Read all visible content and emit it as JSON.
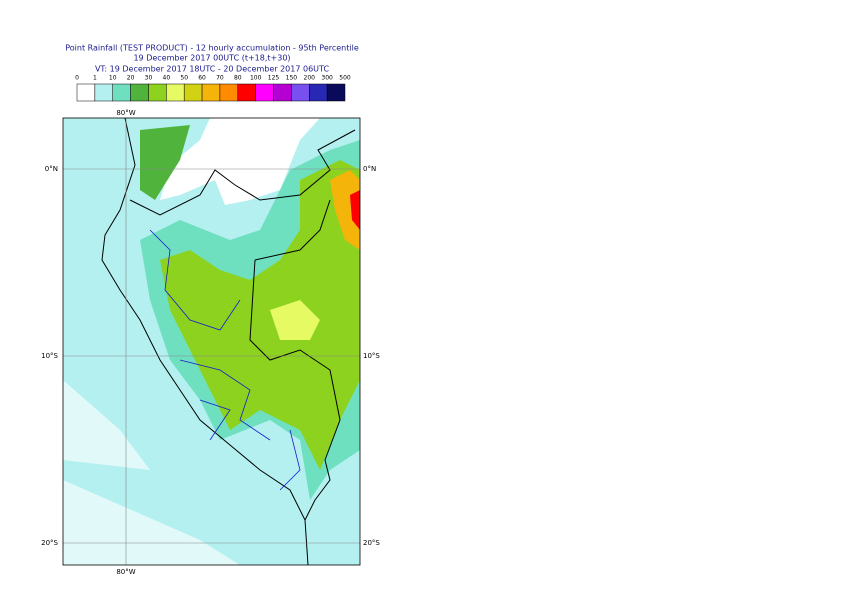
{
  "title": {
    "line1": "Point Rainfall (TEST PRODUCT) - 12 hourly accumulation - 95th Percentile",
    "line2": "19 December 2017 00UTC (t+18,t+30)",
    "line3": "VT: 19 December 2017 18UTC - 20 December 2017 06UTC"
  },
  "legend": {
    "ticks": [
      0,
      1,
      10,
      20,
      30,
      40,
      50,
      60,
      70,
      80,
      100,
      125,
      150,
      200,
      300,
      500
    ],
    "colors": [
      "#ffffff",
      "#b4f0f0",
      "#6ee0c0",
      "#50b43c",
      "#8cd21e",
      "#e6fa64",
      "#d2d214",
      "#f5b40a",
      "#ff8c00",
      "#ff0000",
      "#ff00ff",
      "#b400d2",
      "#7850f0",
      "#2828b4",
      "#0a0a5a"
    ]
  },
  "map": {
    "lon_labels": [
      "80°W"
    ],
    "lat_labels": [
      "0°N",
      "10°S",
      "20°S"
    ]
  }
}
